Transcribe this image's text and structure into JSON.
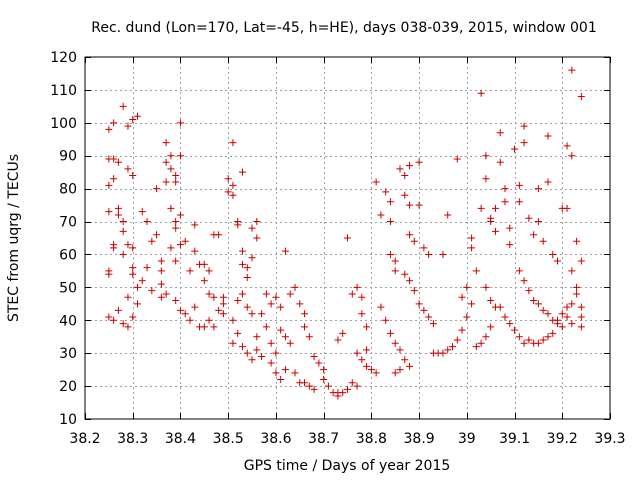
{
  "chart_data": {
    "type": "scatter",
    "title": "Rec. dund (Lon=170, Lat=-45, h=HE), days 038-039, 2015, window 001",
    "xlabel": "GPS time / Days of year 2015",
    "ylabel": "STEC from uqrg / TECUs",
    "xlim": [
      38.2,
      39.3
    ],
    "ylim": [
      10,
      120
    ],
    "xticks": [
      38.2,
      38.3,
      38.4,
      38.5,
      38.6,
      38.7,
      38.8,
      38.9,
      39.0,
      39.1,
      39.2,
      39.3
    ],
    "xtick_labels": [
      "38.2",
      "38.3",
      "38.4",
      "38.5",
      "38.6",
      "38.7",
      "38.8",
      "38.9",
      "39",
      "39.1",
      "39.2",
      "39.3"
    ],
    "yticks": [
      10,
      20,
      30,
      40,
      50,
      60,
      70,
      80,
      90,
      100,
      110,
      120
    ],
    "ytick_labels": [
      "10",
      "20",
      "30",
      "40",
      "50",
      "60",
      "70",
      "80",
      "90",
      "100",
      "110",
      "120"
    ],
    "grid": true,
    "marker": "+",
    "marker_color": "#cc0000",
    "series": [
      {
        "name": "STEC",
        "points": [
          [
            38.25,
            98
          ],
          [
            38.26,
            100
          ],
          [
            38.28,
            105
          ],
          [
            38.29,
            99
          ],
          [
            38.3,
            101
          ],
          [
            38.31,
            102
          ],
          [
            38.25,
            89
          ],
          [
            38.26,
            89
          ],
          [
            38.25,
            81
          ],
          [
            38.26,
            83
          ],
          [
            38.27,
            88
          ],
          [
            38.29,
            86
          ],
          [
            38.3,
            84
          ],
          [
            38.25,
            73
          ],
          [
            38.27,
            74
          ],
          [
            38.27,
            72
          ],
          [
            38.28,
            70
          ],
          [
            38.26,
            63
          ],
          [
            38.26,
            62
          ],
          [
            38.28,
            67
          ],
          [
            38.29,
            63
          ],
          [
            38.3,
            62
          ],
          [
            38.25,
            54
          ],
          [
            38.25,
            55
          ],
          [
            38.28,
            60
          ],
          [
            38.3,
            56
          ],
          [
            38.3,
            54
          ],
          [
            38.25,
            41
          ],
          [
            38.26,
            40
          ],
          [
            38.27,
            43
          ],
          [
            38.28,
            39
          ],
          [
            38.29,
            38
          ],
          [
            38.29,
            47
          ],
          [
            38.31,
            50
          ],
          [
            38.31,
            45
          ],
          [
            38.3,
            41
          ],
          [
            38.32,
            73
          ],
          [
            38.33,
            70
          ],
          [
            38.34,
            64
          ],
          [
            38.33,
            56
          ],
          [
            38.32,
            52
          ],
          [
            38.34,
            49
          ],
          [
            38.35,
            80
          ],
          [
            38.35,
            66
          ],
          [
            38.36,
            58
          ],
          [
            38.36,
            55
          ],
          [
            38.36,
            51
          ],
          [
            38.37,
            94
          ],
          [
            38.37,
            88
          ],
          [
            38.37,
            82
          ],
          [
            38.38,
            90
          ],
          [
            38.38,
            86
          ],
          [
            38.39,
            82
          ],
          [
            38.39,
            84
          ],
          [
            38.38,
            74
          ],
          [
            38.39,
            70
          ],
          [
            38.39,
            68
          ],
          [
            38.38,
            62
          ],
          [
            38.39,
            58
          ],
          [
            38.4,
            100
          ],
          [
            38.4,
            90
          ],
          [
            38.4,
            72
          ],
          [
            38.41,
            64
          ],
          [
            38.4,
            63
          ],
          [
            38.42,
            55
          ],
          [
            38.39,
            46
          ],
          [
            38.4,
            43
          ],
          [
            38.41,
            42
          ],
          [
            38.43,
            44
          ],
          [
            38.37,
            48
          ],
          [
            38.36,
            47
          ],
          [
            38.42,
            40
          ],
          [
            38.44,
            38
          ],
          [
            38.45,
            38
          ],
          [
            38.43,
            61
          ],
          [
            38.44,
            57
          ],
          [
            38.45,
            57
          ],
          [
            38.46,
            55
          ],
          [
            38.43,
            69
          ],
          [
            38.45,
            52
          ],
          [
            38.46,
            48
          ],
          [
            38.47,
            47
          ],
          [
            38.47,
            66
          ],
          [
            38.48,
            66
          ],
          [
            38.48,
            43
          ],
          [
            38.49,
            42
          ],
          [
            38.46,
            40
          ],
          [
            38.47,
            38
          ],
          [
            38.49,
            45
          ],
          [
            38.49,
            47
          ],
          [
            38.5,
            83
          ],
          [
            38.5,
            79
          ],
          [
            38.51,
            78
          ],
          [
            38.51,
            94
          ],
          [
            38.51,
            81
          ],
          [
            38.52,
            70
          ],
          [
            38.52,
            69
          ],
          [
            38.53,
            85
          ],
          [
            38.53,
            61
          ],
          [
            38.53,
            57
          ],
          [
            38.54,
            56
          ],
          [
            38.54,
            53
          ],
          [
            38.55,
            59
          ],
          [
            38.55,
            68
          ],
          [
            38.56,
            70
          ],
          [
            38.56,
            65
          ],
          [
            38.51,
            40
          ],
          [
            38.52,
            46
          ],
          [
            38.53,
            48
          ],
          [
            38.54,
            44
          ],
          [
            38.55,
            42
          ],
          [
            38.52,
            36
          ],
          [
            38.53,
            32
          ],
          [
            38.51,
            33
          ],
          [
            38.54,
            30
          ],
          [
            38.56,
            31
          ],
          [
            38.57,
            29
          ],
          [
            38.55,
            28
          ],
          [
            38.56,
            35
          ],
          [
            38.57,
            42
          ],
          [
            38.58,
            38
          ],
          [
            38.59,
            33
          ],
          [
            38.59,
            27
          ],
          [
            38.6,
            30
          ],
          [
            38.58,
            48
          ],
          [
            38.59,
            45
          ],
          [
            38.6,
            47
          ],
          [
            38.61,
            44
          ],
          [
            38.61,
            37
          ],
          [
            38.62,
            35
          ],
          [
            38.63,
            33
          ],
          [
            38.6,
            24
          ],
          [
            38.61,
            22
          ],
          [
            38.62,
            25
          ],
          [
            38.62,
            61
          ],
          [
            38.63,
            48
          ],
          [
            38.64,
            50
          ],
          [
            38.65,
            45
          ],
          [
            38.66,
            42
          ],
          [
            38.66,
            38
          ],
          [
            38.67,
            35
          ],
          [
            38.64,
            24
          ],
          [
            38.65,
            21
          ],
          [
            38.66,
            21
          ],
          [
            38.67,
            20
          ],
          [
            38.68,
            19
          ],
          [
            38.68,
            29
          ],
          [
            38.69,
            27
          ],
          [
            38.7,
            25
          ],
          [
            38.7,
            22
          ],
          [
            38.71,
            20
          ],
          [
            38.72,
            18
          ],
          [
            38.73,
            18
          ],
          [
            38.73,
            17
          ],
          [
            38.74,
            18
          ],
          [
            38.75,
            19
          ],
          [
            38.76,
            21
          ],
          [
            38.77,
            20
          ],
          [
            38.73,
            34
          ],
          [
            38.74,
            36
          ],
          [
            38.75,
            65
          ],
          [
            38.76,
            48
          ],
          [
            38.77,
            50
          ],
          [
            38.78,
            47
          ],
          [
            38.78,
            42
          ],
          [
            38.79,
            38
          ],
          [
            38.77,
            30
          ],
          [
            38.78,
            28
          ],
          [
            38.79,
            31
          ],
          [
            38.79,
            26
          ],
          [
            38.8,
            25
          ],
          [
            38.81,
            24
          ],
          [
            38.81,
            82
          ],
          [
            38.82,
            72
          ],
          [
            38.83,
            79
          ],
          [
            38.84,
            76
          ],
          [
            38.84,
            70
          ],
          [
            38.84,
            60
          ],
          [
            38.85,
            58
          ],
          [
            38.85,
            55
          ],
          [
            38.86,
            86
          ],
          [
            38.87,
            84
          ],
          [
            38.87,
            78
          ],
          [
            38.88,
            87
          ],
          [
            38.88,
            75
          ],
          [
            38.88,
            66
          ],
          [
            38.89,
            64
          ],
          [
            38.9,
            88
          ],
          [
            38.9,
            75
          ],
          [
            38.91,
            62
          ],
          [
            38.92,
            60
          ],
          [
            38.87,
            54
          ],
          [
            38.88,
            52
          ],
          [
            38.89,
            49
          ],
          [
            38.9,
            45
          ],
          [
            38.91,
            43
          ],
          [
            38.92,
            41
          ],
          [
            38.93,
            39
          ],
          [
            38.82,
            44
          ],
          [
            38.83,
            40
          ],
          [
            38.84,
            36
          ],
          [
            38.85,
            33
          ],
          [
            38.86,
            31
          ],
          [
            38.87,
            28
          ],
          [
            38.88,
            26
          ],
          [
            38.85,
            24
          ],
          [
            38.86,
            25
          ],
          [
            38.93,
            30
          ],
          [
            38.94,
            30
          ],
          [
            38.95,
            30
          ],
          [
            38.96,
            31
          ],
          [
            38.97,
            32
          ],
          [
            38.98,
            34
          ],
          [
            38.99,
            37
          ],
          [
            39.0,
            41
          ],
          [
            39.01,
            45
          ],
          [
            38.95,
            60
          ],
          [
            38.96,
            72
          ],
          [
            38.98,
            89
          ],
          [
            38.99,
            47
          ],
          [
            39.0,
            50
          ],
          [
            39.01,
            65
          ],
          [
            39.01,
            62
          ],
          [
            39.02,
            55
          ],
          [
            39.03,
            109
          ],
          [
            39.03,
            74
          ],
          [
            39.04,
            90
          ],
          [
            39.04,
            83
          ],
          [
            39.05,
            70
          ],
          [
            39.05,
            71
          ],
          [
            39.06,
            74
          ],
          [
            39.06,
            67
          ],
          [
            39.07,
            97
          ],
          [
            39.07,
            88
          ],
          [
            39.08,
            80
          ],
          [
            39.08,
            76
          ],
          [
            39.09,
            68
          ],
          [
            39.09,
            63
          ],
          [
            39.04,
            50
          ],
          [
            39.05,
            46
          ],
          [
            39.06,
            44
          ],
          [
            39.07,
            44
          ],
          [
            39.08,
            41
          ],
          [
            39.09,
            39
          ],
          [
            39.1,
            37
          ],
          [
            39.11,
            35
          ],
          [
            39.12,
            33
          ],
          [
            39.02,
            32
          ],
          [
            39.03,
            33
          ],
          [
            39.04,
            35
          ],
          [
            39.05,
            38
          ],
          [
            39.1,
            92
          ],
          [
            39.11,
            81
          ],
          [
            39.11,
            76
          ],
          [
            39.12,
            99
          ],
          [
            39.12,
            94
          ],
          [
            39.13,
            71
          ],
          [
            39.14,
            66
          ],
          [
            39.15,
            80
          ],
          [
            39.15,
            70
          ],
          [
            39.16,
            64
          ],
          [
            39.17,
            96
          ],
          [
            39.17,
            82
          ],
          [
            39.18,
            60
          ],
          [
            39.19,
            58
          ],
          [
            39.2,
            74
          ],
          [
            39.21,
            93
          ],
          [
            39.21,
            74
          ],
          [
            39.22,
            116
          ],
          [
            39.22,
            90
          ],
          [
            39.23,
            64
          ],
          [
            39.24,
            108
          ],
          [
            39.24,
            58
          ],
          [
            39.11,
            55
          ],
          [
            39.12,
            52
          ],
          [
            39.13,
            49
          ],
          [
            39.14,
            46
          ],
          [
            39.15,
            45
          ],
          [
            39.16,
            43
          ],
          [
            39.17,
            42
          ],
          [
            39.18,
            40
          ],
          [
            39.19,
            39
          ],
          [
            39.2,
            38
          ],
          [
            39.13,
            34
          ],
          [
            39.14,
            33
          ],
          [
            39.15,
            33
          ],
          [
            39.16,
            34
          ],
          [
            39.17,
            35
          ],
          [
            39.18,
            36
          ],
          [
            39.19,
            40
          ],
          [
            39.2,
            42
          ],
          [
            39.21,
            44
          ],
          [
            39.22,
            45
          ],
          [
            39.23,
            48
          ],
          [
            39.24,
            44
          ],
          [
            39.22,
            55
          ],
          [
            39.23,
            50
          ],
          [
            39.24,
            41
          ],
          [
            39.24,
            38
          ],
          [
            39.21,
            41
          ],
          [
            39.22,
            39
          ]
        ]
      }
    ]
  }
}
